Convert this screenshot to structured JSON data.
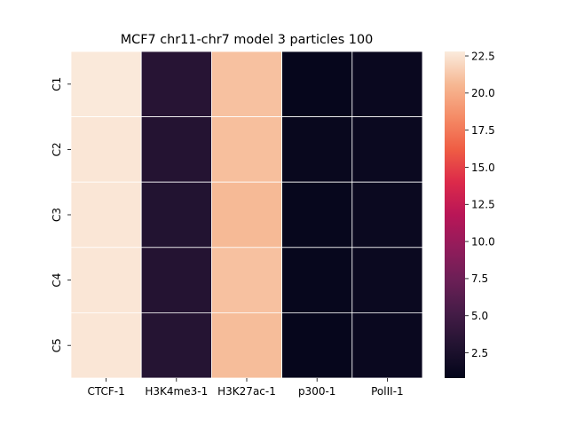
{
  "chart_data": {
    "type": "heatmap",
    "title": "MCF7 chr11-chr7 model 3 particles 100",
    "xlabel": "",
    "ylabel": "",
    "columns": [
      "CTCF-1",
      "H3K4me3-1",
      "H3K27ac-1",
      "p300-1",
      "PolII-1"
    ],
    "rows": [
      "C1",
      "C2",
      "C3",
      "C4",
      "C5"
    ],
    "values": [
      [
        22.7,
        3.3,
        21.0,
        1.0,
        1.3
      ],
      [
        22.6,
        3.1,
        20.9,
        1.2,
        1.4
      ],
      [
        22.6,
        3.0,
        20.7,
        1.1,
        1.4
      ],
      [
        22.6,
        3.1,
        21.0,
        1.1,
        1.4
      ],
      [
        22.6,
        3.2,
        20.8,
        1.0,
        1.3
      ]
    ],
    "colorbar": {
      "min": 0.8,
      "max": 22.8,
      "ticks": [
        2.5,
        5.0,
        7.5,
        10.0,
        12.5,
        15.0,
        17.5,
        20.0,
        22.5
      ],
      "tick_labels": [
        "2.5",
        "5.0",
        "7.5",
        "10.0",
        "12.5",
        "15.0",
        "17.5",
        "20.0",
        "22.5"
      ],
      "colormap": "rocket"
    }
  }
}
